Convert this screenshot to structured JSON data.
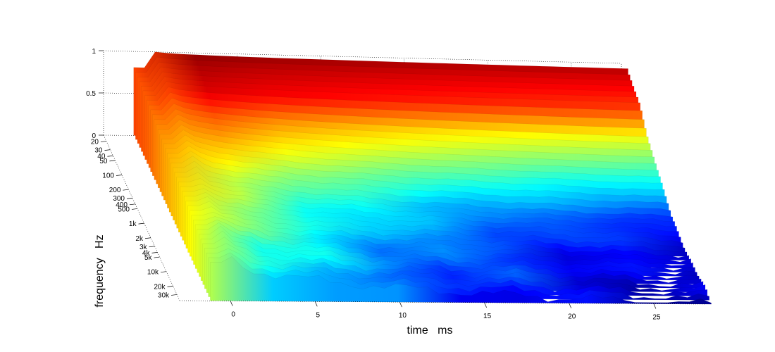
{
  "chart_data": {
    "type": "surface-waterfall",
    "title": "",
    "xlabel": "time   ms",
    "ylabel": "frequency   Hz",
    "zlabel": "",
    "x_ticks": [
      "0",
      "5",
      "10",
      "15",
      "20",
      "25"
    ],
    "x_tick_values": [
      0,
      5,
      10,
      15,
      20,
      25
    ],
    "xlim": [
      -3,
      28
    ],
    "y_ticks": [
      "20",
      "30",
      "40",
      "50",
      "100",
      "200",
      "300",
      "400",
      "500",
      "1k",
      "2k",
      "3k",
      "4k",
      "5k",
      "10k",
      "20k",
      "30k"
    ],
    "y_tick_values": [
      20,
      30,
      40,
      50,
      100,
      200,
      300,
      400,
      500,
      1000,
      2000,
      3000,
      4000,
      5000,
      10000,
      20000,
      30000
    ],
    "y_scale": "log",
    "ylim": [
      15,
      40000
    ],
    "z_ticks": [
      "0",
      "0.5",
      "1"
    ],
    "z_tick_values": [
      0,
      0.5,
      1
    ],
    "zlim": [
      0,
      1
    ],
    "colormap": "jet",
    "grid": "dotted box",
    "decay_profile": [
      {
        "freq": 20,
        "level_at_0ms": 1.0,
        "level_at_28ms": 0.9
      },
      {
        "freq": 50,
        "level_at_0ms": 0.98,
        "level_at_28ms": 0.82
      },
      {
        "freq": 100,
        "level_at_0ms": 0.95,
        "level_at_28ms": 0.6
      },
      {
        "freq": 300,
        "level_at_0ms": 0.9,
        "level_at_28ms": 0.4
      },
      {
        "freq": 1000,
        "level_at_0ms": 0.85,
        "level_at_28ms": 0.18
      },
      {
        "freq": 5000,
        "level_at_0ms": 0.78,
        "level_at_28ms": 0.08
      },
      {
        "freq": 30000,
        "level_at_0ms": 0.7,
        "level_at_28ms": 0.04
      }
    ]
  }
}
